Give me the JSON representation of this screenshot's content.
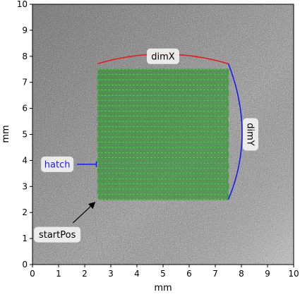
{
  "chart_data": {
    "type": "scatter",
    "title": "",
    "xlabel": "mm",
    "ylabel": "mm",
    "xlim": [
      0,
      10
    ],
    "ylim": [
      0,
      10
    ],
    "xticks": [
      0,
      1,
      2,
      3,
      4,
      5,
      6,
      7,
      8,
      9,
      10
    ],
    "yticks": [
      0,
      1,
      2,
      3,
      4,
      5,
      6,
      7,
      8,
      9,
      10
    ],
    "background": "grayscale speckle texture (powder bed image)",
    "hatch_region": {
      "x_range": [
        2.5,
        7.5
      ],
      "y_range": [
        2.5,
        7.5
      ],
      "line_count": 26,
      "line_color": "#2e8b2e",
      "fill_color": "#228b22"
    },
    "annotations": [
      {
        "id": "dimX",
        "text": "dimX",
        "x": 5.0,
        "y": 8.0,
        "kind": "arc",
        "color": "#e02020"
      },
      {
        "id": "dimY",
        "text": "dimY",
        "x": 8.35,
        "y": 5.0,
        "kind": "arc",
        "color": "#1a1aee"
      },
      {
        "id": "hatch",
        "text": "hatch",
        "x": 0.95,
        "y": 3.85,
        "kind": "bracket",
        "color": "#1a1aee"
      },
      {
        "id": "startPos",
        "text": "startPos",
        "x": 0.95,
        "y": 1.15,
        "kind": "arrow",
        "color": "#000000",
        "target": [
          2.5,
          2.5
        ]
      }
    ],
    "colors": {
      "red": "#e02020",
      "blue": "#1a1aee",
      "green": "#2e8b2e",
      "label_bg": "#f2f2f2"
    }
  }
}
